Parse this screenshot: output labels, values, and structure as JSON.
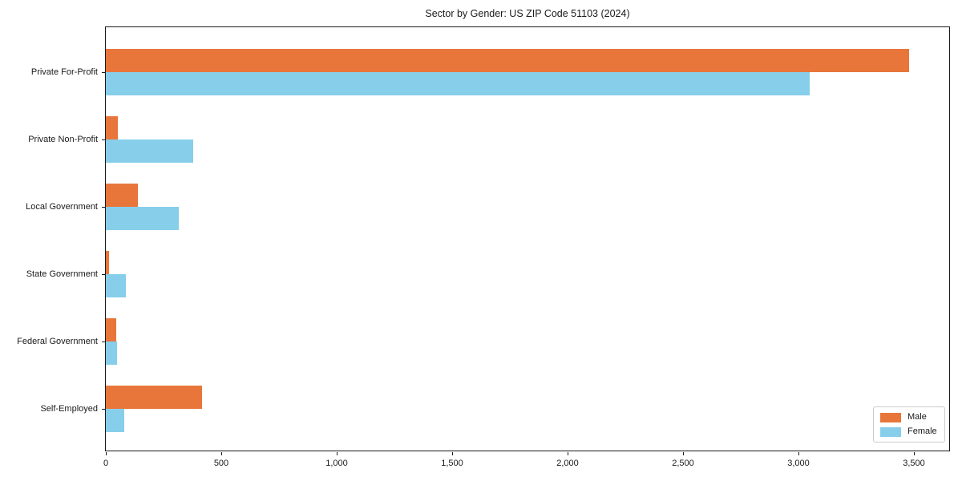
{
  "chart_data": {
    "type": "bar",
    "orientation": "horizontal",
    "title": "Sector by Gender: US ZIP Code 51103 (2024)",
    "categories": [
      "Private For-Profit",
      "Private Non-Profit",
      "Local Government",
      "State Government",
      "Federal Government",
      "Self-Employed"
    ],
    "series": [
      {
        "name": "Male",
        "color": "#E8763B",
        "values": [
          3480,
          52,
          140,
          15,
          45,
          415
        ]
      },
      {
        "name": "Female",
        "color": "#87CEEB",
        "values": [
          3050,
          380,
          315,
          87,
          48,
          80
        ]
      }
    ],
    "xlabel": "",
    "ylabel": "",
    "xlim": [
      0,
      3660
    ],
    "xticks": [
      0,
      500,
      1000,
      1500,
      2000,
      2500,
      3000,
      3500
    ],
    "xtick_labels": [
      "0",
      "500",
      "1,000",
      "1,500",
      "2,000",
      "2,500",
      "3,000",
      "3,500"
    ],
    "grid": false,
    "legend": {
      "position": "lower right"
    },
    "colors": {
      "spine": "#1a1a1a",
      "text": "#1a1a1a",
      "legend_border": "#cccccc",
      "background": "#ffffff"
    }
  }
}
